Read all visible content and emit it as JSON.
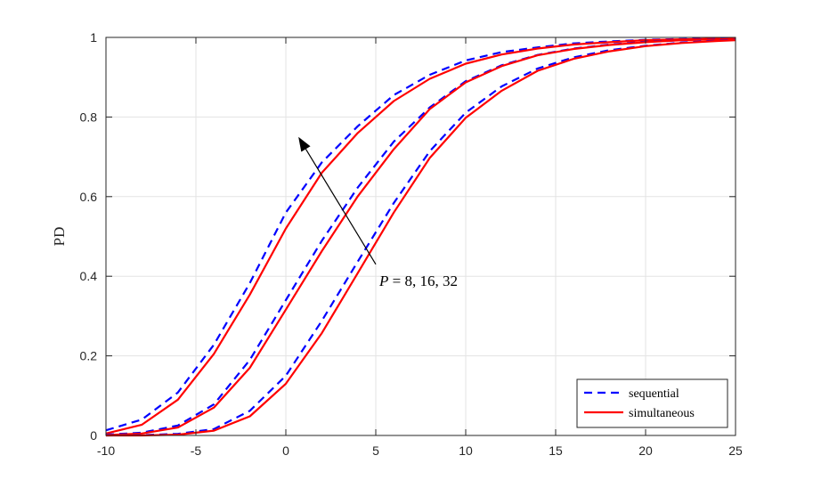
{
  "chart_data": {
    "type": "line",
    "title": "",
    "xlabel": "",
    "ylabel": "PD",
    "xlim": [
      -10,
      25
    ],
    "ylim": [
      0,
      1
    ],
    "xticks": [
      -10,
      -5,
      0,
      5,
      10,
      15,
      20,
      25
    ],
    "yticks": [
      0,
      0.2,
      0.4,
      0.6,
      0.8,
      1
    ],
    "xtick_labels": [
      "-10",
      "-5",
      "0",
      "5",
      "10",
      "15",
      "20",
      "25"
    ],
    "ytick_labels": [
      "0",
      "0.2",
      "0.4",
      "0.6",
      "0.8",
      "1"
    ],
    "grid": true,
    "legend_position": "bottom-right",
    "legend": [
      "sequential",
      "simultaneous"
    ],
    "x": [
      -10,
      -8,
      -6,
      -4,
      -2,
      0,
      2,
      4,
      6,
      8,
      10,
      12,
      14,
      16,
      18,
      20,
      22,
      24,
      25
    ],
    "series": [
      {
        "legend_entry": "sequential",
        "group": "P=8",
        "color": "#0000ff",
        "dash": "dashed",
        "values": [
          0.013,
          0.04,
          0.108,
          0.228,
          0.383,
          0.56,
          0.686,
          0.777,
          0.855,
          0.906,
          0.942,
          0.963,
          0.975,
          0.985,
          0.99,
          0.994,
          0.996,
          0.998,
          0.998
        ]
      },
      {
        "legend_entry": "simultaneous",
        "group": "P=8",
        "color": "#ff0000",
        "dash": "solid",
        "values": [
          0.005,
          0.027,
          0.09,
          0.205,
          0.354,
          0.52,
          0.66,
          0.76,
          0.84,
          0.896,
          0.934,
          0.957,
          0.972,
          0.982,
          0.988,
          0.993,
          0.995,
          0.997,
          0.998
        ]
      },
      {
        "legend_entry": "sequential",
        "group": "P=16",
        "color": "#0000ff",
        "dash": "dashed",
        "values": [
          0.002,
          0.007,
          0.025,
          0.078,
          0.19,
          0.34,
          0.489,
          0.623,
          0.738,
          0.824,
          0.89,
          0.93,
          0.956,
          0.972,
          0.982,
          0.989,
          0.993,
          0.996,
          0.997
        ]
      },
      {
        "legend_entry": "simultaneous",
        "group": "P=16",
        "color": "#ff0000",
        "dash": "solid",
        "values": [
          0.001,
          0.005,
          0.02,
          0.07,
          0.17,
          0.316,
          0.463,
          0.601,
          0.719,
          0.82,
          0.887,
          0.928,
          0.955,
          0.971,
          0.981,
          0.988,
          0.993,
          0.995,
          0.997
        ]
      },
      {
        "legend_entry": "sequential",
        "group": "P=32",
        "color": "#0000ff",
        "dash": "dashed",
        "values": [
          0.0,
          0.001,
          0.004,
          0.016,
          0.062,
          0.15,
          0.288,
          0.437,
          0.584,
          0.714,
          0.811,
          0.877,
          0.922,
          0.95,
          0.968,
          0.979,
          0.987,
          0.992,
          0.994
        ]
      },
      {
        "legend_entry": "simultaneous",
        "group": "P=32",
        "color": "#ff0000",
        "dash": "solid",
        "values": [
          0.0,
          0.0,
          0.002,
          0.012,
          0.048,
          0.13,
          0.257,
          0.408,
          0.56,
          0.697,
          0.798,
          0.866,
          0.916,
          0.946,
          0.965,
          0.978,
          0.986,
          0.991,
          0.993
        ]
      }
    ],
    "annotation": {
      "text": "P = 8, 16, 32",
      "arrow_from": {
        "x": 5.0,
        "y": 0.43
      },
      "arrow_to": {
        "x": 0.7,
        "y": 0.75
      }
    }
  }
}
